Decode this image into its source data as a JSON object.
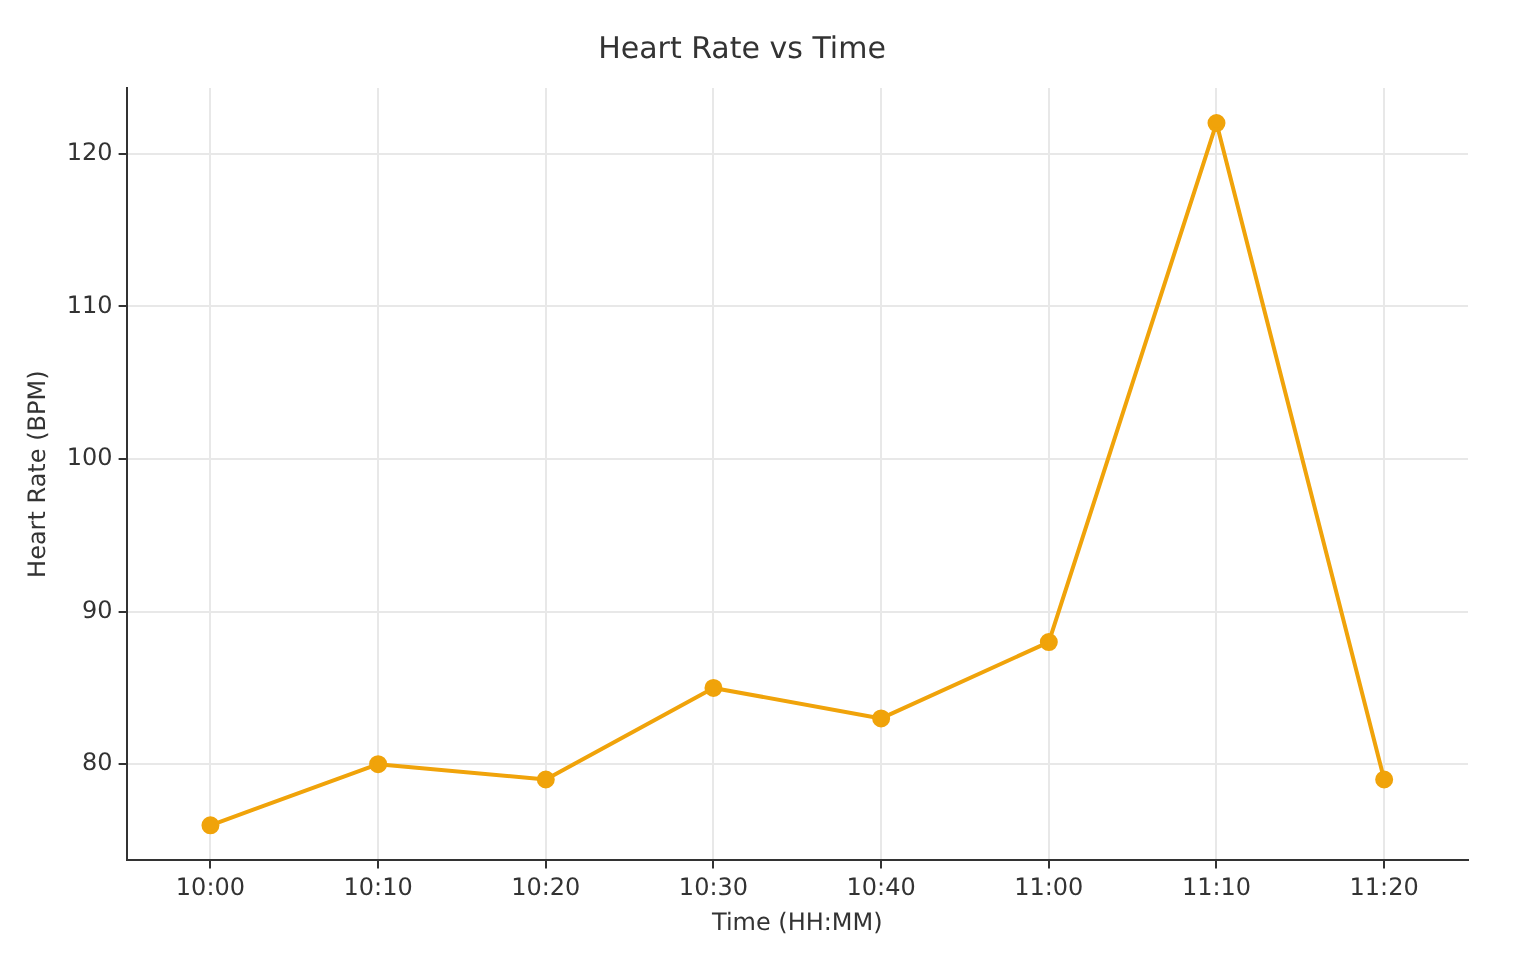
{
  "chart_data": {
    "type": "line",
    "title": "Heart Rate vs Time",
    "xlabel": "Time (HH:MM)",
    "ylabel": "Heart Rate (BPM)",
    "categories": [
      "10:00",
      "10:10",
      "10:20",
      "10:30",
      "10:40",
      "11:00",
      "11:10",
      "11:20"
    ],
    "series": [
      {
        "color": "#f0a30a",
        "values": [
          76,
          80,
          79,
          85,
          83,
          88,
          122,
          79
        ]
      }
    ],
    "ylim": [
      73.7,
      124.3
    ],
    "yticks": [
      80,
      90,
      100,
      110,
      120
    ],
    "grid": true,
    "marker": "circle",
    "line_style": "solid"
  }
}
